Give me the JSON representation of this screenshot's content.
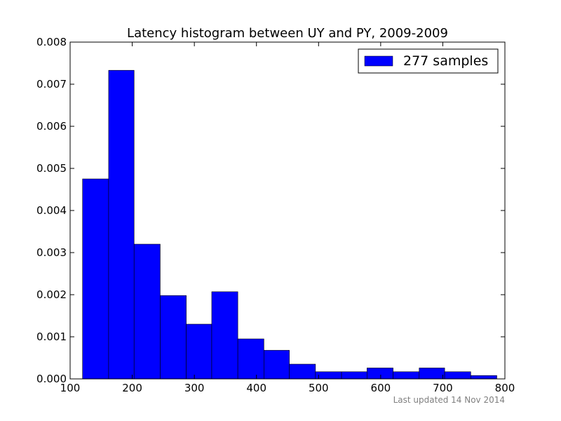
{
  "chart_data": {
    "type": "bar",
    "title": "Latency histogram between UY and PY, 2009-2009",
    "xlabel": "",
    "ylabel": "",
    "xlim": [
      100,
      800
    ],
    "ylim": [
      0,
      0.008
    ],
    "x_ticks": [
      100,
      200,
      300,
      400,
      500,
      600,
      700,
      800
    ],
    "y_ticks": [
      0.0,
      0.001,
      0.002,
      0.003,
      0.004,
      0.005,
      0.006,
      0.007,
      0.008
    ],
    "x_tick_labels": [
      "100",
      "200",
      "300",
      "400",
      "500",
      "600",
      "700",
      "800"
    ],
    "y_tick_labels": [
      "0.000",
      "0.001",
      "0.002",
      "0.003",
      "0.004",
      "0.005",
      "0.006",
      "0.007",
      "0.008"
    ],
    "grid": false,
    "legend_position": "top-right",
    "series": [
      {
        "name": "277 samples",
        "color": "#0000ff",
        "bin_edges": [
          120,
          162,
          203,
          245,
          287,
          328,
          370,
          412,
          453,
          495,
          537,
          578,
          620,
          662,
          703,
          745,
          787
        ],
        "values": [
          0.00475,
          0.00733,
          0.0032,
          0.00198,
          0.0013,
          0.00207,
          0.00095,
          0.00068,
          0.00035,
          0.00017,
          0.00017,
          0.00026,
          0.00017,
          0.00026,
          0.00017,
          8e-05
        ]
      }
    ],
    "footnote": "Last updated 14 Nov 2014"
  }
}
